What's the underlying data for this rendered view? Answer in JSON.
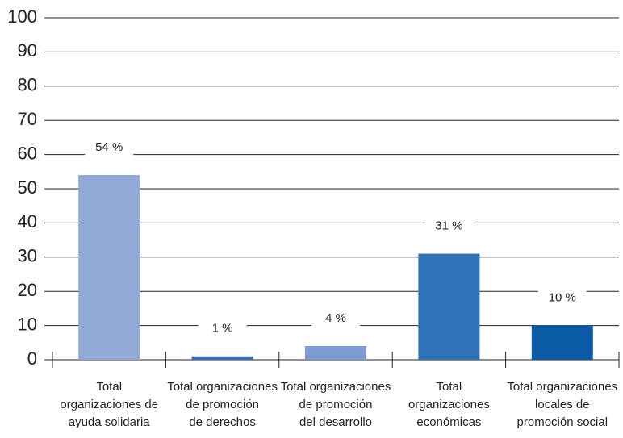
{
  "chart_data": {
    "type": "bar",
    "categories": [
      [
        "Total",
        "organizaciones de",
        "ayuda solidaria"
      ],
      [
        "Total organizaciones",
        "de promoción",
        "de derechos"
      ],
      [
        "Total organizaciones",
        "de promoción",
        "del desarrollo"
      ],
      [
        "Total",
        "organizaciones",
        "económicas"
      ],
      [
        "Total organizaciones",
        "locales de",
        "promoción social"
      ]
    ],
    "values": [
      54,
      1,
      4,
      31,
      10
    ],
    "value_labels": [
      "54 %",
      "1 %",
      "4 %",
      "31 %",
      "10 %"
    ],
    "colors": [
      "#91a9d6",
      "#3a6db5",
      "#7b9bd2",
      "#2e72b8",
      "#0b5aa5"
    ],
    "ylim": [
      0,
      100
    ],
    "yticks": [
      0,
      10,
      20,
      30,
      40,
      50,
      60,
      70,
      80,
      90,
      100
    ],
    "grid": true
  }
}
